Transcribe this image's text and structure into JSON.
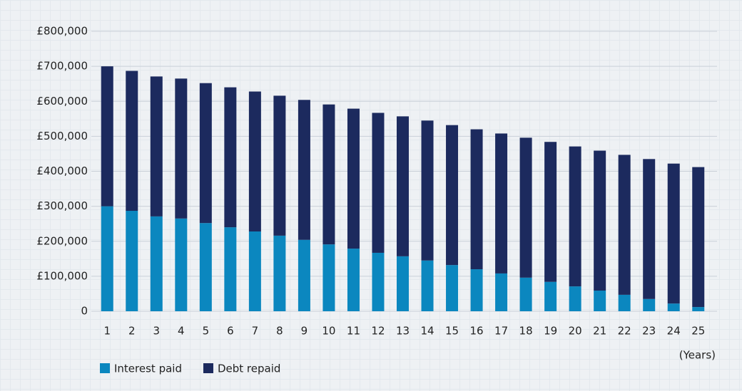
{
  "chart_data": {
    "type": "stacked_bar",
    "categories": [
      "1",
      "2",
      "3",
      "4",
      "5",
      "6",
      "7",
      "8",
      "9",
      "10",
      "11",
      "12",
      "13",
      "14",
      "15",
      "16",
      "17",
      "18",
      "19",
      "20",
      "21",
      "22",
      "23",
      "24",
      "25"
    ],
    "series": [
      {
        "name": "Interest paid",
        "color": "#0b87bf",
        "values": [
          300000,
          287000,
          271000,
          265000,
          252000,
          240000,
          228000,
          216000,
          204000,
          191000,
          179000,
          167000,
          157000,
          145000,
          132000,
          120000,
          108000,
          96000,
          84000,
          71000,
          59000,
          47000,
          35000,
          22000,
          12000
        ]
      },
      {
        "name": "Debt repaid",
        "color": "#1c2a5e",
        "values": [
          400000,
          400000,
          400000,
          400000,
          400000,
          400000,
          400000,
          400000,
          400000,
          400000,
          400000,
          400000,
          400000,
          400000,
          400000,
          400000,
          400000,
          400000,
          400000,
          400000,
          400000,
          400000,
          400000,
          400000,
          400000
        ]
      }
    ],
    "x_label": "(Years)",
    "ylim": [
      0,
      800000
    ],
    "yticks": [
      0,
      {
        "value": 100000,
        "label": "£100,000"
      },
      {
        "value": 200000,
        "label": "£200,000"
      },
      {
        "value": 300000,
        "label": "£300,000"
      },
      {
        "value": 400000,
        "label": "£400,000"
      },
      {
        "value": 500000,
        "label": "£500,000"
      },
      {
        "value": 600000,
        "label": "£600,000"
      },
      {
        "value": 700000,
        "label": "£700,000"
      },
      {
        "value": 800000,
        "label": "£800,000"
      }
    ],
    "grid": true,
    "legend": "bottom-left"
  }
}
